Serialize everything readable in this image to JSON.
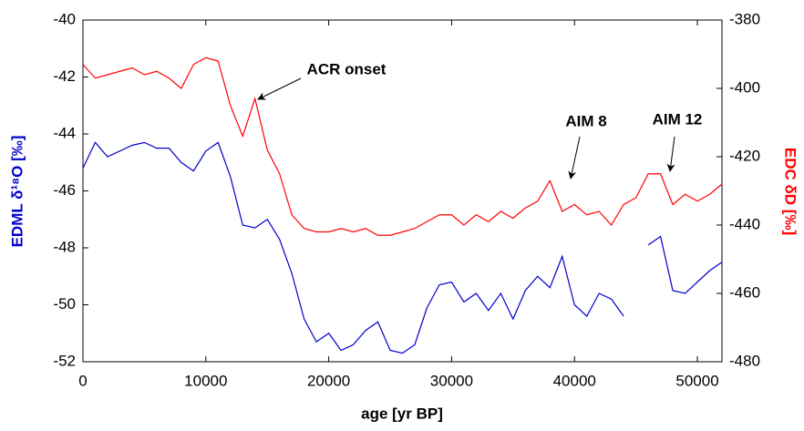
{
  "chart_data": {
    "type": "line",
    "x_label": "age [yr BP]",
    "y_label": "EDML δ¹⁸O [‰]",
    "y2_label": "EDC δD [‰]",
    "annotations": [
      "ACR onset",
      "AIM 8",
      "AIM 12"
    ],
    "x": [
      0,
      1000,
      2000,
      3000,
      4000,
      5000,
      6000,
      7000,
      8000,
      9000,
      10000,
      11000,
      12000,
      13000,
      14000,
      15000,
      16000,
      17000,
      18000,
      19000,
      20000,
      21000,
      22000,
      23000,
      24000,
      25000,
      26000,
      27000,
      28000,
      29000,
      30000,
      31000,
      32000,
      33000,
      34000,
      35000,
      36000,
      37000,
      38000,
      39000,
      40000,
      41000,
      42000,
      43000,
      44000,
      45000,
      46000,
      47000,
      48000,
      49000,
      50000,
      51000,
      52000
    ],
    "series": [
      {
        "name": "EDML δ¹⁸O",
        "color": "#0000cc",
        "axis": "y",
        "values": [
          -45.2,
          -44.3,
          -44.8,
          -44.6,
          -44.4,
          -44.3,
          -44.5,
          -44.5,
          -45.0,
          -45.3,
          -44.6,
          -44.3,
          -45.5,
          -47.2,
          -47.3,
          -47.0,
          -47.7,
          -48.9,
          -50.5,
          -51.3,
          -51.0,
          -51.6,
          -51.4,
          -50.9,
          -50.6,
          -51.6,
          -51.7,
          -51.4,
          -50.1,
          -49.3,
          -49.2,
          -49.9,
          -49.6,
          -50.2,
          -49.6,
          -50.5,
          -49.5,
          -49.0,
          -49.4,
          -48.3,
          -50.0,
          -50.4,
          -49.6,
          -49.8,
          -50.4,
          null,
          -47.9,
          -47.6,
          -49.5,
          -49.6,
          -49.2,
          -48.8,
          -48.5
        ]
      },
      {
        "name": "EDC δD",
        "color": "#ff0000",
        "axis": "y2",
        "values": [
          -393,
          -397,
          -396,
          -395,
          -394,
          -396,
          -395,
          -397,
          -400,
          -393,
          -391,
          -392,
          -405,
          -414,
          -403,
          -418,
          -425,
          -437,
          -441,
          -442,
          -442,
          -441,
          -442,
          -441,
          -443,
          -443,
          -442,
          -441,
          -439,
          -437,
          -437,
          -440,
          -437,
          -439,
          -436,
          -438,
          -435,
          -433,
          -427,
          -436,
          -434,
          -437,
          -436,
          -440,
          -434,
          -432,
          -425,
          -425,
          -434,
          -431,
          -433,
          -431,
          -428
        ]
      }
    ],
    "xlim": [
      0,
      52000
    ],
    "xticks": [
      0,
      10000,
      20000,
      30000,
      40000,
      50000
    ],
    "ylim": [
      -52,
      -40
    ],
    "yticks": [
      -52,
      -50,
      -48,
      -46,
      -44,
      -42,
      -40
    ],
    "y2lim": [
      -480,
      -380
    ],
    "y2ticks": [
      -480,
      -460,
      -440,
      -420,
      -400,
      -380
    ],
    "grid": false
  }
}
